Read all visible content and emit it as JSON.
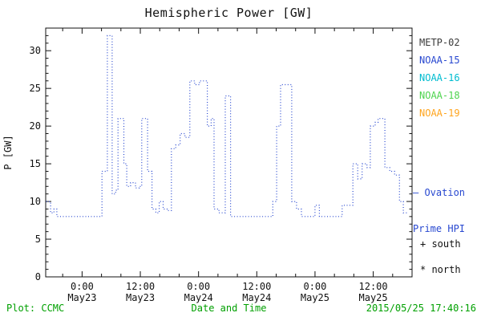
{
  "title": "Hemispheric Power [GW]",
  "ylabel": "P [GW]",
  "footer": {
    "left": "Plot: CCMC",
    "center": "Date and Time",
    "right": "2015/05/25 17:40:16"
  },
  "legend": {
    "items": [
      {
        "label": "METP-02",
        "color": "#3a3a3a"
      },
      {
        "label": "NOAA-15",
        "color": "#2848d0"
      },
      {
        "label": "NOAA-16",
        "color": "#00bcd0"
      },
      {
        "label": "NOAA-18",
        "color": "#4ed44e"
      },
      {
        "label": "NOAA-19",
        "color": "#ffa51e"
      }
    ]
  },
  "annotations": {
    "ovation_line1": "— Ovation",
    "ovation_line2": "Prime HPI",
    "ovation_color": "#2848d0",
    "south_marker": "+ south",
    "north_marker": "* north"
  },
  "colors": {
    "axis": "#111111",
    "line": "#2848d0",
    "footer_text": "#00a000",
    "background": "#ffffff"
  },
  "chart_data": {
    "type": "line",
    "line_style": "dotted-step",
    "title": "Hemispheric Power [GW]",
    "xlabel": "Date and Time",
    "ylabel": "P [GW]",
    "x_unit": "hours since 2015-05-23 00:00 UT",
    "xlim": [
      -7.5,
      68
    ],
    "ylim": [
      0,
      33
    ],
    "grid": false,
    "legend_position": "right-outside",
    "yticks": [
      {
        "v": 0,
        "label": "0"
      },
      {
        "v": 5,
        "label": "5"
      },
      {
        "v": 10,
        "label": "10"
      },
      {
        "v": 15,
        "label": "15"
      },
      {
        "v": 20,
        "label": "20"
      },
      {
        "v": 25,
        "label": "25"
      },
      {
        "v": 30,
        "label": "30"
      }
    ],
    "xticks": [
      {
        "t": 0,
        "time": "0:00",
        "date": "May23"
      },
      {
        "t": 12,
        "time": "12:00",
        "date": "May23"
      },
      {
        "t": 24,
        "time": "0:00",
        "date": "May24"
      },
      {
        "t": 36,
        "time": "12:00",
        "date": "May24"
      },
      {
        "t": 48,
        "time": "0:00",
        "date": "May25"
      },
      {
        "t": 60,
        "time": "12:00",
        "date": "May25"
      }
    ],
    "x_minor_step": 4,
    "y_minor_step": 1,
    "series": [
      {
        "name": "Ovation Prime HPI",
        "color": "#2848d0",
        "points": [
          [
            -7.4,
            10
          ],
          [
            -6.8,
            10
          ],
          [
            -6.5,
            8.5
          ],
          [
            -5.8,
            9
          ],
          [
            -5.2,
            8
          ],
          [
            3.7,
            8
          ],
          [
            4.1,
            14
          ],
          [
            5.0,
            14
          ],
          [
            5.2,
            32
          ],
          [
            6.0,
            32
          ],
          [
            6.2,
            11
          ],
          [
            6.9,
            11.5
          ],
          [
            7.4,
            21
          ],
          [
            8.3,
            21
          ],
          [
            8.6,
            15
          ],
          [
            9.2,
            12
          ],
          [
            10.0,
            12.5
          ],
          [
            11.0,
            11.8
          ],
          [
            11.8,
            12
          ],
          [
            12.3,
            21
          ],
          [
            13.2,
            21
          ],
          [
            13.5,
            14
          ],
          [
            14.4,
            9
          ],
          [
            15.2,
            8.5
          ],
          [
            15.9,
            10
          ],
          [
            16.7,
            9
          ],
          [
            17.6,
            8.8
          ],
          [
            18.4,
            17
          ],
          [
            19.3,
            17.5
          ],
          [
            20.2,
            19
          ],
          [
            21.2,
            18.5
          ],
          [
            22.2,
            26
          ],
          [
            23.2,
            25.5
          ],
          [
            24.2,
            26
          ],
          [
            25.4,
            26
          ],
          [
            25.8,
            20
          ],
          [
            26.6,
            21
          ],
          [
            27.2,
            9
          ],
          [
            28.2,
            8.5
          ],
          [
            29.0,
            8.5
          ],
          [
            29.5,
            24
          ],
          [
            30.3,
            24
          ],
          [
            30.6,
            8
          ],
          [
            38.8,
            8
          ],
          [
            39.3,
            10
          ],
          [
            40.1,
            20
          ],
          [
            40.9,
            25.5
          ],
          [
            42.8,
            25.5
          ],
          [
            43.2,
            10
          ],
          [
            44.2,
            9
          ],
          [
            45.2,
            8
          ],
          [
            47.6,
            8
          ],
          [
            48.0,
            9.5
          ],
          [
            48.9,
            8
          ],
          [
            53.2,
            8
          ],
          [
            53.6,
            9.5
          ],
          [
            55.4,
            9.5
          ],
          [
            55.8,
            15
          ],
          [
            56.8,
            13
          ],
          [
            57.7,
            15
          ],
          [
            58.7,
            14.5
          ],
          [
            59.4,
            20
          ],
          [
            60.4,
            20.5
          ],
          [
            61.0,
            21
          ],
          [
            62.0,
            21
          ],
          [
            62.4,
            14.5
          ],
          [
            63.4,
            14
          ],
          [
            64.4,
            13.5
          ],
          [
            65.4,
            10
          ],
          [
            66.2,
            8.5
          ],
          [
            67.2,
            8.5
          ]
        ]
      }
    ]
  }
}
